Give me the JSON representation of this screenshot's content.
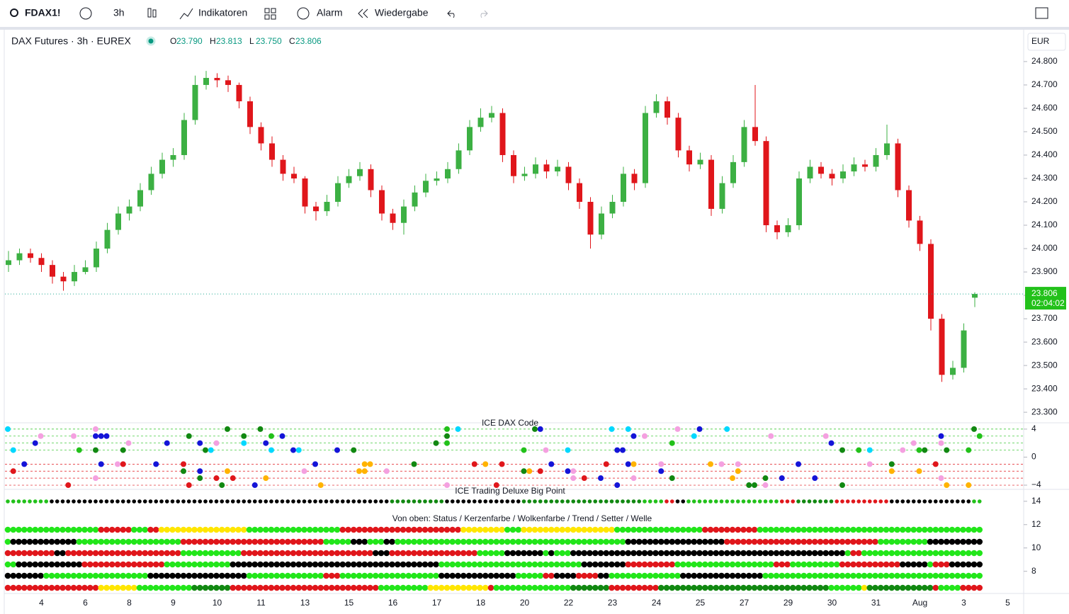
{
  "toolbar": {
    "symbol": "FDAX1!",
    "interval": "3h",
    "indicators": "Indikatoren",
    "alert": "Alarm",
    "replay": "Wiedergabe"
  },
  "chart_data": {
    "type": "candlestick",
    "title": "DAX Futures · 3h · EUREX",
    "header_values": [
      {
        "key": "O",
        "value": "23.790"
      },
      {
        "key": "H",
        "value": "23.813"
      },
      {
        "key": "L",
        "value": "23.750"
      },
      {
        "key": "C",
        "value": "23.806"
      }
    ],
    "currency": "EUR",
    "up_color": "#3cb043",
    "down_color": "#e0161b",
    "ylim": [
      23261,
      24927
    ],
    "yticks": [
      {
        "value": 24800,
        "label": "24.800"
      },
      {
        "value": 24700,
        "label": "24.700"
      },
      {
        "value": 24600,
        "label": "24.600"
      },
      {
        "value": 24500,
        "label": "24.500"
      },
      {
        "value": 24400,
        "label": "24.400"
      },
      {
        "value": 24300,
        "label": "24.300"
      },
      {
        "value": 24200,
        "label": "24.200"
      },
      {
        "value": 24100,
        "label": "24.100"
      },
      {
        "value": 24000,
        "label": "24.000"
      },
      {
        "value": 23900,
        "label": "23.900"
      },
      {
        "value": 23800,
        "label": "23.800"
      },
      {
        "value": 23700,
        "label": "23.700"
      },
      {
        "value": 23600,
        "label": "23.600"
      },
      {
        "value": 23500,
        "label": "23.500"
      },
      {
        "value": 23400,
        "label": "23.400"
      },
      {
        "value": 23300,
        "label": "23.300"
      }
    ],
    "last_price": {
      "value": 23806,
      "label": "23.806"
    },
    "countdown": "02:04:02",
    "categories": [
      null,
      null,
      null,
      "4",
      null,
      null,
      null,
      "6",
      null,
      null,
      null,
      "8",
      null,
      null,
      null,
      "9",
      null,
      null,
      null,
      "10",
      null,
      null,
      null,
      "11",
      null,
      null,
      null,
      "13",
      null,
      null,
      null,
      "15",
      null,
      null,
      null,
      "16",
      null,
      null,
      null,
      "17",
      null,
      null,
      null,
      "18",
      null,
      null,
      null,
      "20",
      null,
      null,
      null,
      "22",
      null,
      null,
      null,
      "23",
      null,
      null,
      null,
      "24",
      null,
      null,
      null,
      "25",
      null,
      null,
      null,
      "27",
      null,
      null,
      null,
      "29",
      null,
      null,
      null,
      "30",
      null,
      null,
      null,
      "31",
      null,
      null,
      null,
      "Aug",
      null,
      null,
      null,
      "3",
      null,
      null,
      null,
      "5"
    ],
    "ohlc": [
      [
        23930,
        23990,
        23900,
        23950
      ],
      [
        23950,
        24000,
        23930,
        23980
      ],
      [
        23980,
        24000,
        23940,
        23960
      ],
      [
        23960,
        23980,
        23900,
        23930
      ],
      [
        23930,
        23950,
        23850,
        23880
      ],
      [
        23880,
        23900,
        23820,
        23860
      ],
      [
        23860,
        23930,
        23840,
        23900
      ],
      [
        23900,
        23950,
        23890,
        23920
      ],
      [
        23920,
        24030,
        23900,
        24000
      ],
      [
        24000,
        24110,
        23980,
        24080
      ],
      [
        24080,
        24180,
        24060,
        24150
      ],
      [
        24150,
        24210,
        24120,
        24180
      ],
      [
        24180,
        24280,
        24160,
        24250
      ],
      [
        24250,
        24350,
        24230,
        24320
      ],
      [
        24320,
        24410,
        24300,
        24380
      ],
      [
        24380,
        24430,
        24350,
        24400
      ],
      [
        24400,
        24580,
        24380,
        24550
      ],
      [
        24550,
        24740,
        24530,
        24700
      ],
      [
        24700,
        24760,
        24680,
        24730
      ],
      [
        24730,
        24750,
        24690,
        24720
      ],
      [
        24720,
        24740,
        24670,
        24700
      ],
      [
        24700,
        24710,
        24600,
        24630
      ],
      [
        24630,
        24650,
        24490,
        24520
      ],
      [
        24520,
        24540,
        24420,
        24450
      ],
      [
        24450,
        24480,
        24350,
        24380
      ],
      [
        24380,
        24400,
        24290,
        24320
      ],
      [
        24320,
        24350,
        24280,
        24300
      ],
      [
        24300,
        24310,
        24150,
        24180
      ],
      [
        24180,
        24200,
        24120,
        24160
      ],
      [
        24160,
        24230,
        24140,
        24200
      ],
      [
        24200,
        24310,
        24180,
        24280
      ],
      [
        24280,
        24340,
        24260,
        24310
      ],
      [
        24310,
        24370,
        24290,
        24340
      ],
      [
        24340,
        24360,
        24220,
        24250
      ],
      [
        24250,
        24270,
        24120,
        24150
      ],
      [
        24150,
        24170,
        24080,
        24110
      ],
      [
        24110,
        24210,
        24060,
        24180
      ],
      [
        24180,
        24270,
        24160,
        24240
      ],
      [
        24240,
        24320,
        24220,
        24290
      ],
      [
        24290,
        24330,
        24270,
        24300
      ],
      [
        24300,
        24370,
        24280,
        24340
      ],
      [
        24340,
        24450,
        24320,
        24420
      ],
      [
        24420,
        24550,
        24400,
        24520
      ],
      [
        24520,
        24600,
        24500,
        24560
      ],
      [
        24560,
        24610,
        24540,
        24580
      ],
      [
        24580,
        24600,
        24370,
        24400
      ],
      [
        24400,
        24420,
        24280,
        24310
      ],
      [
        24310,
        24350,
        24290,
        24320
      ],
      [
        24320,
        24390,
        24300,
        24360
      ],
      [
        24360,
        24380,
        24300,
        24330
      ],
      [
        24330,
        24380,
        24310,
        24350
      ],
      [
        24350,
        24370,
        24250,
        24280
      ],
      [
        24280,
        24300,
        24170,
        24200
      ],
      [
        24200,
        24220,
        24000,
        24060
      ],
      [
        24060,
        24180,
        24040,
        24150
      ],
      [
        24150,
        24230,
        24130,
        24200
      ],
      [
        24200,
        24350,
        24180,
        24320
      ],
      [
        24320,
        24340,
        24250,
        24280
      ],
      [
        24280,
        24610,
        24260,
        24580
      ],
      [
        24580,
        24660,
        24560,
        24630
      ],
      [
        24630,
        24650,
        24530,
        24560
      ],
      [
        24560,
        24580,
        24390,
        24420
      ],
      [
        24420,
        24440,
        24330,
        24360
      ],
      [
        24360,
        24410,
        24340,
        24380
      ],
      [
        24380,
        24400,
        24140,
        24170
      ],
      [
        24170,
        24310,
        24150,
        24280
      ],
      [
        24280,
        24400,
        24260,
        24370
      ],
      [
        24370,
        24550,
        24350,
        24520
      ],
      [
        24520,
        24700,
        24440,
        24460
      ],
      [
        24460,
        24480,
        24070,
        24100
      ],
      [
        24100,
        24120,
        24040,
        24070
      ],
      [
        24070,
        24130,
        24050,
        24100
      ],
      [
        24100,
        24330,
        24080,
        24300
      ],
      [
        24300,
        24380,
        24280,
        24350
      ],
      [
        24350,
        24370,
        24300,
        24320
      ],
      [
        24320,
        24340,
        24270,
        24300
      ],
      [
        24300,
        24360,
        24280,
        24330
      ],
      [
        24330,
        24390,
        24310,
        24360
      ],
      [
        24360,
        24380,
        24330,
        24350
      ],
      [
        24350,
        24430,
        24330,
        24400
      ],
      [
        24400,
        24530,
        24380,
        24450
      ],
      [
        24450,
        24470,
        24220,
        24250
      ],
      [
        24250,
        24270,
        24090,
        24120
      ],
      [
        24120,
        24140,
        23990,
        24020
      ],
      [
        24020,
        24040,
        23650,
        23700
      ],
      [
        23700,
        23720,
        23430,
        23460
      ],
      [
        23460,
        23520,
        23440,
        23490
      ],
      [
        23490,
        23680,
        23470,
        23650
      ],
      [
        23790,
        23813,
        23750,
        23806
      ],
      null,
      null,
      null
    ],
    "panels": [
      {
        "title": "ICE DAX Code",
        "ylim": [
          -4.5,
          4.9
        ],
        "yticks": [
          4,
          0,
          {
            "value": -4,
            "label": "−4"
          }
        ],
        "gridlines": [
          4,
          3,
          2,
          1,
          -1,
          -2,
          -3,
          -4
        ]
      },
      {
        "title": "ICE Trading Deluxe Big Point",
        "subtitle": "Von oben: Status / Kerzenfarbe / Wolkenfarbe / Trend / Setter / Welle",
        "ylim": [
          6.1,
          14.9
        ],
        "yticks": [
          14,
          12,
          10,
          8
        ]
      }
    ]
  }
}
